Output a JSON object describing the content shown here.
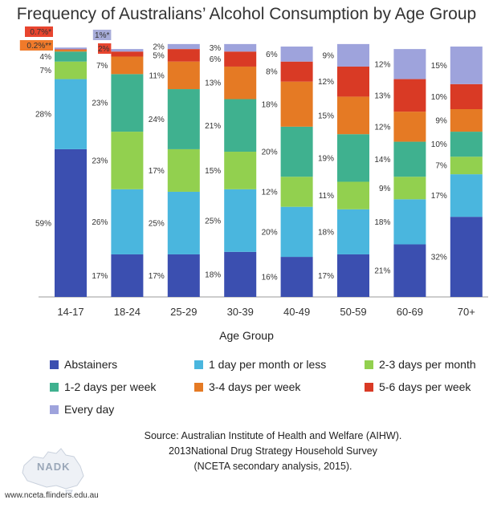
{
  "chart_data": {
    "type": "bar",
    "stacked": true,
    "title": "Frequency of Australians’ Alcohol Consumption by Age Group",
    "xlabel": "Age Group",
    "ylabel": "",
    "categories": [
      "14-17",
      "18-24",
      "25-29",
      "30-39",
      "40-49",
      "50-59",
      "60-69",
      "70+"
    ],
    "ylim": [
      0,
      100
    ],
    "legend_position": "bottom",
    "grid": false,
    "series": [
      {
        "name": "Abstainers",
        "color": "#3b4fb0",
        "values": [
          59,
          17,
          17,
          18,
          16,
          17,
          21,
          32
        ]
      },
      {
        "name": "1 day per month or less",
        "color": "#4ab6de",
        "values": [
          28,
          26,
          25,
          25,
          20,
          18,
          18,
          17
        ]
      },
      {
        "name": "2-3 days per month",
        "color": "#92d04f",
        "values": [
          7,
          23,
          17,
          15,
          12,
          11,
          9,
          7
        ]
      },
      {
        "name": "1-2 days per week",
        "color": "#3fb18f",
        "values": [
          4,
          23,
          24,
          21,
          20,
          19,
          14,
          10
        ]
      },
      {
        "name": "3-4 days per week",
        "color": "#e57a24",
        "values": [
          0.7,
          7,
          11,
          13,
          18,
          15,
          12,
          9
        ]
      },
      {
        "name": "5-6 days per week",
        "color": "#d93a25",
        "values": [
          0.2,
          2,
          5,
          6,
          8,
          12,
          13,
          10
        ]
      },
      {
        "name": "Every day",
        "color": "#9ea3dc",
        "values": [
          0.7,
          1,
          2,
          3,
          6,
          9,
          12,
          15
        ]
      }
    ],
    "data_labels": [
      [
        "59%",
        "17%",
        "17%",
        "18%",
        "16%",
        "17%",
        "21%",
        "32%"
      ],
      [
        "28%",
        "26%",
        "25%",
        "25%",
        "20%",
        "18%",
        "18%",
        "17%"
      ],
      [
        "7%",
        "23%",
        "17%",
        "15%",
        "12%",
        "11%",
        "9%",
        "7%"
      ],
      [
        "4%",
        "23%",
        "24%",
        "21%",
        "20%",
        "19%",
        "14%",
        "10%"
      ],
      [
        "0.7%*",
        "7%",
        "11%",
        "13%",
        "18%",
        "15%",
        "12%",
        "9%"
      ],
      [
        "0.2%**",
        "2%",
        "5%",
        "6%",
        "8%",
        "12%",
        "13%",
        "10%"
      ],
      [
        "",
        "1%*",
        "2%",
        "3%",
        "6%",
        "9%",
        "12%",
        "15%"
      ]
    ]
  },
  "source": {
    "line1": "Source: Australian Institute of Health and Welfare (AIHW).",
    "line2": "2013National Drug Strategy Household Survey",
    "line3": "(NCETA secondary analysis, 2015)."
  },
  "logo": {
    "text": "NADK"
  },
  "url": "www.nceta.flinders.edu.au"
}
